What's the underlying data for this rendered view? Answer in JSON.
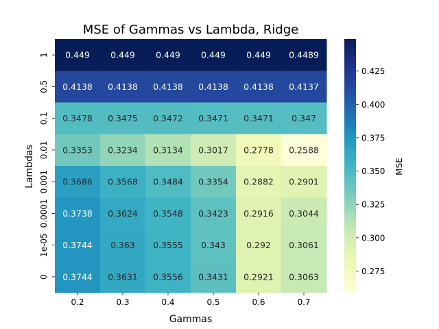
{
  "chart_data": {
    "type": "heatmap",
    "title": "MSE of Gammas vs Lambda, Ridge",
    "xlabel": "Gammas",
    "ylabel": "Lambdas",
    "x_categories": [
      "0.2",
      "0.3",
      "0.4",
      "0.5",
      "0.6",
      "0.7"
    ],
    "y_categories": [
      "1",
      "0.5",
      "0.1",
      "0.01",
      "0.001",
      "0.0001",
      "1e-05",
      "0"
    ],
    "values": [
      [
        0.449,
        0.449,
        0.449,
        0.449,
        0.449,
        0.4489
      ],
      [
        0.4138,
        0.4138,
        0.4138,
        0.4138,
        0.4138,
        0.4137
      ],
      [
        0.3478,
        0.3475,
        0.3472,
        0.3471,
        0.3471,
        0.347
      ],
      [
        0.3353,
        0.3234,
        0.3134,
        0.3017,
        0.2778,
        0.2588
      ],
      [
        0.3686,
        0.3568,
        0.3484,
        0.3354,
        0.2882,
        0.2901
      ],
      [
        0.3738,
        0.3624,
        0.3548,
        0.3423,
        0.2916,
        0.3044
      ],
      [
        0.3744,
        0.363,
        0.3555,
        0.343,
        0.292,
        0.3061
      ],
      [
        0.3744,
        0.3631,
        0.3556,
        0.3431,
        0.2921,
        0.3063
      ]
    ],
    "value_labels": [
      [
        "0.449",
        "0.449",
        "0.449",
        "0.449",
        "0.449",
        "0.4489"
      ],
      [
        "0.4138",
        "0.4138",
        "0.4138",
        "0.4138",
        "0.4138",
        "0.4137"
      ],
      [
        "0.3478",
        "0.3475",
        "0.3472",
        "0.3471",
        "0.3471",
        "0.347"
      ],
      [
        "0.3353",
        "0.3234",
        "0.3134",
        "0.3017",
        "0.2778",
        "0.2588"
      ],
      [
        "0.3686",
        "0.3568",
        "0.3484",
        "0.3354",
        "0.2882",
        "0.2901"
      ],
      [
        "0.3738",
        "0.3624",
        "0.3548",
        "0.3423",
        "0.2916",
        "0.3044"
      ],
      [
        "0.3744",
        "0.363",
        "0.3555",
        "0.343",
        "0.292",
        "0.3061"
      ],
      [
        "0.3744",
        "0.3631",
        "0.3556",
        "0.3431",
        "0.2921",
        "0.3063"
      ]
    ],
    "colormap": "YlGnBu",
    "colorbar": {
      "label": "MSE",
      "range": [
        0.2588,
        0.449
      ],
      "ticks": [
        0.275,
        0.3,
        0.325,
        0.35,
        0.375,
        0.4,
        0.425
      ],
      "tick_labels": [
        "0.275",
        "0.300",
        "0.325",
        "0.350",
        "0.375",
        "0.400",
        "0.425"
      ]
    },
    "annotations": true,
    "grid": false
  }
}
